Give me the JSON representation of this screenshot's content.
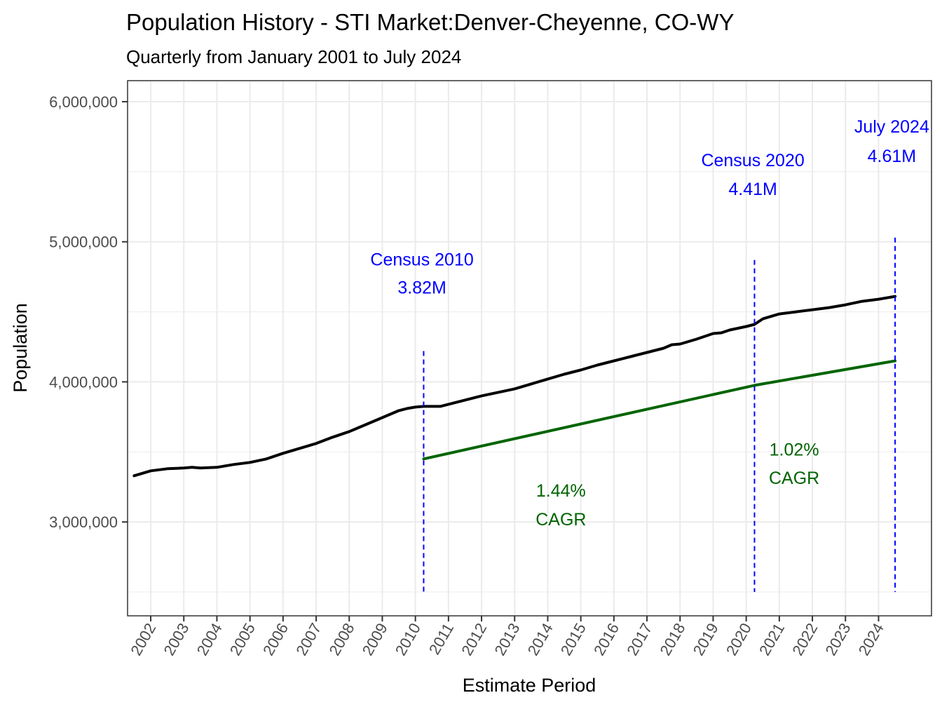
{
  "chart_data": {
    "type": "line",
    "title": "Population History - STI Market:Denver-Cheyenne, CO-WY",
    "subtitle": "Quarterly from January 2001 to July 2024",
    "xlabel": "Estimate Period",
    "ylabel": "Population",
    "xlim": [
      2001.3,
      2025.6
    ],
    "ylim": [
      2330000,
      6150000
    ],
    "y_ticks": [
      3000000,
      4000000,
      5000000,
      6000000
    ],
    "y_tick_labels": [
      "3,000,000",
      "4,000,000",
      "5,000,000",
      "6,000,000"
    ],
    "x_tick_labels": [
      "2002",
      "2003",
      "2004",
      "2005",
      "2006",
      "2007",
      "2008",
      "2009",
      "2010",
      "2011",
      "2012",
      "2013",
      "2014",
      "2015",
      "2016",
      "2017",
      "2018",
      "2019",
      "2020",
      "2021",
      "2022",
      "2023",
      "2024"
    ],
    "grid": true,
    "colors": {
      "population_line": "#000000",
      "cagr_line": "#006400",
      "vlines": "#0000ff",
      "annotation_blue": "#0000ff",
      "annotation_green": "#006400",
      "grid": "#ebebeb",
      "panel_border": "#333333"
    },
    "series": [
      {
        "name": "Population",
        "x": [
          2001.5,
          2002.0,
          2002.5,
          2003.0,
          2003.25,
          2003.5,
          2004.0,
          2004.5,
          2005.0,
          2005.5,
          2006.0,
          2006.5,
          2007.0,
          2007.5,
          2008.0,
          2008.5,
          2009.0,
          2009.5,
          2009.75,
          2010.0,
          2010.25,
          2010.75,
          2011.0,
          2011.5,
          2012.0,
          2012.5,
          2013.0,
          2013.5,
          2014.0,
          2014.5,
          2015.0,
          2015.5,
          2016.0,
          2016.5,
          2017.0,
          2017.5,
          2017.75,
          2018.0,
          2018.5,
          2019.0,
          2019.25,
          2019.5,
          2020.0,
          2020.25,
          2020.5,
          2021.0,
          2021.5,
          2022.0,
          2022.5,
          2023.0,
          2023.5,
          2024.0,
          2024.5
        ],
        "values": [
          3330000,
          3365000,
          3380000,
          3385000,
          3390000,
          3385000,
          3390000,
          3410000,
          3425000,
          3450000,
          3490000,
          3525000,
          3560000,
          3605000,
          3645000,
          3695000,
          3745000,
          3795000,
          3810000,
          3820000,
          3825000,
          3825000,
          3840000,
          3870000,
          3900000,
          3925000,
          3950000,
          3985000,
          4020000,
          4055000,
          4085000,
          4120000,
          4150000,
          4180000,
          4210000,
          4240000,
          4265000,
          4270000,
          4305000,
          4345000,
          4350000,
          4370000,
          4395000,
          4410000,
          4450000,
          4485000,
          4500000,
          4515000,
          4530000,
          4550000,
          4575000,
          4590000,
          4610000
        ]
      },
      {
        "name": "CAGR trend",
        "x": [
          2010.25,
          2020.25,
          2024.5
        ],
        "values": [
          3450000,
          3975000,
          4150000
        ]
      }
    ],
    "vertical_lines": [
      {
        "x": 2010.25,
        "y_top": 4220000
      },
      {
        "x": 2020.25,
        "y_top": 4870000
      },
      {
        "x": 2024.5,
        "y_top": 5030000
      }
    ],
    "annotations": [
      {
        "line1": "Census 2010",
        "line2": "3.82M",
        "x": 2010.2,
        "y1": 4830000,
        "y2": 4630000,
        "color": "blue"
      },
      {
        "line1": "Census 2020",
        "line2": "4.41M",
        "x": 2020.2,
        "y1": 5540000,
        "y2": 5335000,
        "color": "blue"
      },
      {
        "line1": "July 2024",
        "line2": "4.61M",
        "x": 2024.4,
        "y1": 5780000,
        "y2": 5570000,
        "color": "blue"
      },
      {
        "line1": "1.44%",
        "line2": "CAGR",
        "x": 2014.4,
        "y1": 3180000,
        "y2": 2975000,
        "color": "green"
      },
      {
        "line1": "1.02%",
        "line2": "CAGR",
        "x": 2021.45,
        "y1": 3475000,
        "y2": 3270000,
        "color": "green"
      }
    ]
  }
}
